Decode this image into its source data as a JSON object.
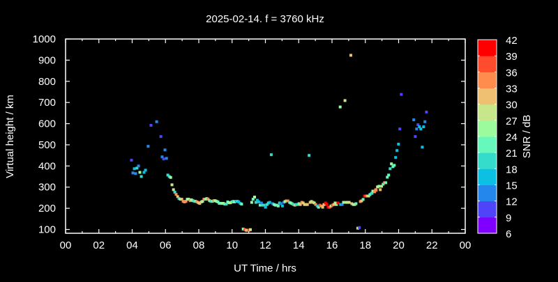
{
  "chart_data": {
    "type": "scatter",
    "title": "2025-02-14. f = 3760 kHz",
    "xlabel": "UT Time / hrs",
    "ylabel": "Virtual height / km",
    "xlim": [
      0,
      24
    ],
    "ylim": [
      82,
      1000
    ],
    "x_ticks": [
      "00",
      "02",
      "04",
      "06",
      "08",
      "10",
      "12",
      "14",
      "16",
      "18",
      "20",
      "22",
      "00"
    ],
    "y_ticks": [
      100,
      200,
      300,
      400,
      500,
      600,
      700,
      800,
      900,
      1000
    ],
    "grid": false,
    "background": "#000000",
    "colorbar": {
      "label": "SNR / dB",
      "ticks": [
        6,
        9,
        12,
        15,
        18,
        21,
        24,
        27,
        30,
        33,
        36,
        39,
        42
      ],
      "colors": [
        "#8000ff",
        "#4f44f8",
        "#2387ec",
        "#0cc0e4",
        "#35dccc",
        "#67f9bb",
        "#9cfb9c",
        "#c8e68a",
        "#f0c072",
        "#ff8c4c",
        "#ff4c2c",
        "#ff0000"
      ]
    },
    "point_fields": [
      "ut_hours",
      "virtual_height_km",
      "snr_db"
    ],
    "points": [
      [
        3.96,
        427,
        9
      ],
      [
        5.13,
        592,
        10
      ],
      [
        5.47,
        609,
        13
      ],
      [
        4.96,
        493,
        13
      ],
      [
        5.72,
        539,
        10
      ],
      [
        5.97,
        476,
        13
      ],
      [
        5.8,
        443,
        13
      ],
      [
        5.89,
        433,
        10
      ],
      [
        6.06,
        436,
        13
      ],
      [
        4.04,
        367,
        13
      ],
      [
        4.21,
        364,
        13
      ],
      [
        4.13,
        387,
        17
      ],
      [
        4.29,
        390,
        18
      ],
      [
        4.38,
        400,
        14
      ],
      [
        4.46,
        370,
        24
      ],
      [
        4.55,
        350,
        18
      ],
      [
        4.71,
        370,
        16
      ],
      [
        4.8,
        380,
        15
      ],
      [
        6.14,
        357,
        19
      ],
      [
        6.23,
        350,
        20
      ],
      [
        6.31,
        346,
        25
      ],
      [
        6.39,
        311,
        27
      ],
      [
        6.48,
        288,
        27
      ],
      [
        6.56,
        276,
        18
      ],
      [
        6.64,
        266,
        33
      ],
      [
        6.73,
        255,
        31
      ],
      [
        6.81,
        246,
        20
      ],
      [
        6.9,
        243,
        27
      ],
      [
        6.98,
        243,
        31
      ],
      [
        7.06,
        233,
        33
      ],
      [
        7.14,
        230,
        35
      ],
      [
        7.23,
        233,
        33
      ],
      [
        7.31,
        243,
        24
      ],
      [
        7.39,
        243,
        25
      ],
      [
        7.48,
        236,
        34
      ],
      [
        7.56,
        240,
        24
      ],
      [
        7.65,
        236,
        22
      ],
      [
        7.73,
        233,
        20
      ],
      [
        7.81,
        233,
        22
      ],
      [
        7.9,
        230,
        33
      ],
      [
        7.98,
        226,
        31
      ],
      [
        8.06,
        223,
        32
      ],
      [
        8.15,
        230,
        31
      ],
      [
        8.23,
        233,
        24
      ],
      [
        8.31,
        243,
        33
      ],
      [
        8.4,
        243,
        21
      ],
      [
        8.48,
        246,
        26
      ],
      [
        8.56,
        243,
        34
      ],
      [
        8.65,
        236,
        24
      ],
      [
        8.73,
        233,
        18
      ],
      [
        8.82,
        233,
        22
      ],
      [
        8.9,
        236,
        34
      ],
      [
        8.98,
        236,
        26
      ],
      [
        9.07,
        233,
        24
      ],
      [
        9.15,
        230,
        22
      ],
      [
        9.23,
        223,
        21
      ],
      [
        9.32,
        223,
        22
      ],
      [
        9.4,
        223,
        24
      ],
      [
        9.48,
        223,
        24
      ],
      [
        9.57,
        220,
        22
      ],
      [
        9.65,
        220,
        18
      ],
      [
        9.74,
        230,
        21
      ],
      [
        9.82,
        226,
        24
      ],
      [
        9.9,
        226,
        27
      ],
      [
        9.99,
        230,
        21
      ],
      [
        10.07,
        233,
        18
      ],
      [
        10.15,
        230,
        24
      ],
      [
        10.24,
        233,
        15
      ],
      [
        10.32,
        233,
        18
      ],
      [
        10.4,
        230,
        17
      ],
      [
        10.49,
        223,
        15
      ],
      [
        10.57,
        220,
        21
      ],
      [
        10.67,
        102,
        24
      ],
      [
        10.76,
        99,
        36
      ],
      [
        10.85,
        96,
        31
      ],
      [
        10.93,
        96,
        30
      ],
      [
        11.01,
        96,
        36
      ],
      [
        11.1,
        99,
        27
      ],
      [
        11.18,
        228,
        24
      ],
      [
        11.26,
        243,
        21
      ],
      [
        11.35,
        253,
        24
      ],
      [
        11.43,
        228,
        18
      ],
      [
        11.51,
        238,
        15
      ],
      [
        11.6,
        230,
        17
      ],
      [
        11.68,
        215,
        23
      ],
      [
        11.76,
        225,
        14
      ],
      [
        11.85,
        215,
        20
      ],
      [
        11.93,
        215,
        18
      ],
      [
        12.01,
        205,
        15
      ],
      [
        12.1,
        218,
        20
      ],
      [
        12.18,
        225,
        18
      ],
      [
        12.26,
        228,
        17
      ],
      [
        12.35,
        453,
        19
      ],
      [
        14.62,
        450,
        19
      ],
      [
        12.43,
        222,
        14
      ],
      [
        12.52,
        218,
        21
      ],
      [
        12.6,
        215,
        24
      ],
      [
        12.68,
        215,
        21
      ],
      [
        12.77,
        211,
        23
      ],
      [
        12.85,
        225,
        18
      ],
      [
        12.93,
        222,
        14
      ],
      [
        13.02,
        211,
        17
      ],
      [
        13.1,
        228,
        14
      ],
      [
        13.18,
        232,
        24
      ],
      [
        13.27,
        235,
        31
      ],
      [
        13.35,
        235,
        33
      ],
      [
        13.44,
        228,
        18
      ],
      [
        13.52,
        225,
        24
      ],
      [
        13.6,
        222,
        22
      ],
      [
        13.69,
        218,
        20
      ],
      [
        13.77,
        215,
        31
      ],
      [
        13.85,
        218,
        20
      ],
      [
        13.94,
        218,
        20
      ],
      [
        14.02,
        222,
        24
      ],
      [
        14.1,
        218,
        31
      ],
      [
        14.19,
        228,
        33
      ],
      [
        14.27,
        225,
        30
      ],
      [
        14.35,
        218,
        27
      ],
      [
        14.44,
        218,
        31
      ],
      [
        14.52,
        218,
        31
      ],
      [
        14.69,
        228,
        31
      ],
      [
        14.77,
        232,
        27
      ],
      [
        14.86,
        228,
        31
      ],
      [
        14.94,
        225,
        24
      ],
      [
        15.02,
        218,
        33
      ],
      [
        15.11,
        211,
        15
      ],
      [
        15.19,
        205,
        21
      ],
      [
        15.27,
        215,
        36
      ],
      [
        15.36,
        211,
        33
      ],
      [
        15.44,
        205,
        31
      ],
      [
        15.52,
        218,
        31
      ],
      [
        15.61,
        225,
        42
      ],
      [
        15.69,
        218,
        39
      ],
      [
        15.77,
        205,
        39
      ],
      [
        15.86,
        205,
        36
      ],
      [
        15.94,
        211,
        24
      ],
      [
        16.02,
        215,
        36
      ],
      [
        16.11,
        218,
        31
      ],
      [
        16.19,
        225,
        27
      ],
      [
        16.27,
        218,
        24
      ],
      [
        16.36,
        225,
        39
      ],
      [
        16.52,
        218,
        17
      ],
      [
        16.61,
        218,
        14
      ],
      [
        16.69,
        228,
        24
      ],
      [
        16.86,
        228,
        27
      ],
      [
        16.94,
        228,
        27
      ],
      [
        17.03,
        228,
        27
      ],
      [
        17.19,
        222,
        30
      ],
      [
        17.28,
        218,
        24
      ],
      [
        17.36,
        218,
        27
      ],
      [
        17.44,
        222,
        22
      ],
      [
        17.7,
        232,
        34
      ],
      [
        17.78,
        235,
        31
      ],
      [
        17.87,
        242,
        22
      ],
      [
        17.95,
        258,
        39
      ],
      [
        18.03,
        258,
        36
      ],
      [
        18.12,
        258,
        30
      ],
      [
        18.2,
        258,
        28
      ],
      [
        18.28,
        265,
        21
      ],
      [
        18.37,
        271,
        20
      ],
      [
        18.45,
        281,
        24
      ],
      [
        18.54,
        278,
        33
      ],
      [
        18.62,
        288,
        33
      ],
      [
        17.55,
        106,
        27
      ],
      [
        17.64,
        109,
        10
      ],
      [
        16.49,
        679,
        24
      ],
      [
        16.78,
        709,
        27
      ],
      [
        17.13,
        923,
        32
      ],
      [
        18.4,
        271,
        20
      ],
      [
        18.48,
        281,
        27
      ],
      [
        18.56,
        278,
        33
      ],
      [
        18.65,
        285,
        33
      ],
      [
        18.73,
        301,
        29
      ],
      [
        18.82,
        304,
        26
      ],
      [
        18.9,
        288,
        32
      ],
      [
        18.98,
        304,
        27
      ],
      [
        19.07,
        314,
        21
      ],
      [
        19.15,
        321,
        33
      ],
      [
        19.23,
        321,
        22
      ],
      [
        19.32,
        347,
        23
      ],
      [
        19.4,
        357,
        22
      ],
      [
        19.49,
        387,
        20
      ],
      [
        19.57,
        410,
        24
      ],
      [
        19.66,
        397,
        21
      ],
      [
        19.74,
        403,
        21
      ],
      [
        19.82,
        440,
        17
      ],
      [
        19.9,
        473,
        16
      ],
      [
        19.99,
        503,
        15
      ],
      [
        20.07,
        575,
        11
      ],
      [
        20.16,
        738,
        10
      ],
      [
        20.91,
        618,
        13
      ],
      [
        21.0,
        539,
        10
      ],
      [
        21.08,
        575,
        13
      ],
      [
        21.16,
        595,
        10
      ],
      [
        21.25,
        585,
        15
      ],
      [
        21.33,
        575,
        15
      ],
      [
        21.42,
        489,
        15
      ],
      [
        21.5,
        585,
        15
      ],
      [
        21.58,
        609,
        14
      ],
      [
        21.67,
        655,
        10
      ]
    ]
  }
}
